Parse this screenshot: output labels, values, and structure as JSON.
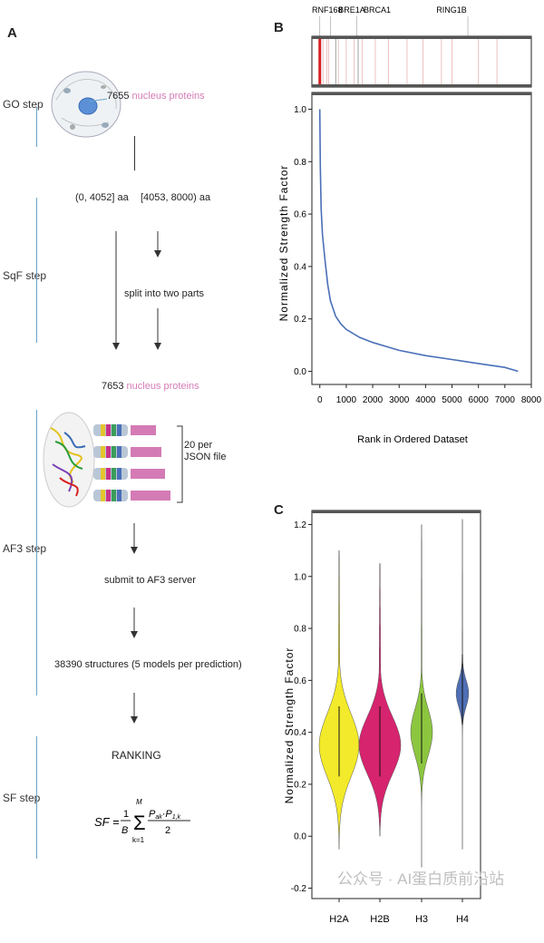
{
  "panels": {
    "a": "A",
    "b": "B",
    "c": "C"
  },
  "steps": {
    "go": "GO step",
    "sqf": "SqF step",
    "af3": "AF3 step",
    "sf": "SF step"
  },
  "workflow": {
    "count1_num": "7655",
    "count1_label": "nucleus proteins",
    "range1": "(0, 4052] aa",
    "range2": "[4053, 8000) aa",
    "split": "split into two parts",
    "count2_num": "7653",
    "count2_label": "nucleus proteins",
    "json_note_1": "20 per",
    "json_note_2": "JSON file",
    "submit": "submit to AF3 server",
    "structures": "38390 structures (5 models per prediction)",
    "ranking": "RANKING"
  },
  "formula": {
    "lhs": "SF =",
    "frac_num": "1",
    "frac_den": "B",
    "sum_top": "M",
    "sum_bottom": "k=1",
    "term_num": "P",
    "term_num_sub": "ak",
    "term_num_mid": "·P",
    "term_num_sub2": "1,k",
    "term_den": "2"
  },
  "colors": {
    "pink": "#d47bb5",
    "blue_line": "#6aa5cc",
    "curve": "#4a6fb8",
    "h2a": "#f2ea2a",
    "h2b": "#d6246e",
    "h3": "#8cc63f",
    "h4": "#4f6fb5",
    "bar_highlight": "#d62020"
  },
  "barcode": {
    "labels": [
      "RNF168",
      "BRE1A",
      "BRCA1",
      "RING1B"
    ]
  },
  "chart_data": [
    {
      "type": "line",
      "xlabel": "Rank in Ordered Dataset",
      "ylabel": "Normalized Strength Factor",
      "xlim": [
        -300,
        8000
      ],
      "ylim": [
        -0.05,
        1.05
      ],
      "xticks": [
        "0",
        "1000",
        "2000",
        "3000",
        "4000",
        "5000",
        "6000",
        "7000",
        "8000"
      ],
      "yticks": [
        "0.0",
        "0.2",
        "0.4",
        "0.6",
        "0.8",
        "1.0"
      ],
      "series": [
        {
          "x": [
            0,
            20,
            50,
            100,
            200,
            300,
            400,
            600,
            800,
            1000,
            1500,
            2000,
            3000,
            4000,
            5000,
            6000,
            7000,
            7500
          ],
          "y": [
            1.0,
            0.78,
            0.62,
            0.52,
            0.42,
            0.33,
            0.27,
            0.21,
            0.18,
            0.16,
            0.13,
            0.11,
            0.08,
            0.06,
            0.045,
            0.03,
            0.015,
            0.0
          ]
        }
      ]
    },
    {
      "type": "violin",
      "ylabel": "Normalized Strength Factor",
      "categories": [
        "H2A",
        "H2B",
        "H3",
        "H4"
      ],
      "ylim": [
        -0.24,
        1.24
      ],
      "yticks": [
        "-0.2",
        "0.0",
        "0.2",
        "0.4",
        "0.6",
        "0.8",
        "1.0",
        "1.2"
      ],
      "series": [
        {
          "name": "H2A",
          "min": -0.05,
          "max": 1.1,
          "mode": 0.35,
          "spread": 0.12
        },
        {
          "name": "H2B",
          "min": 0.0,
          "max": 1.05,
          "mode": 0.35,
          "spread": 0.11
        },
        {
          "name": "H3",
          "min": -0.12,
          "max": 1.2,
          "mode": 0.4,
          "spread": 0.09
        },
        {
          "name": "H4",
          "min": -0.05,
          "max": 1.22,
          "mode": 0.55,
          "spread": 0.05
        }
      ]
    }
  ],
  "watermark": "公众号 · AI蛋白质前沿站"
}
